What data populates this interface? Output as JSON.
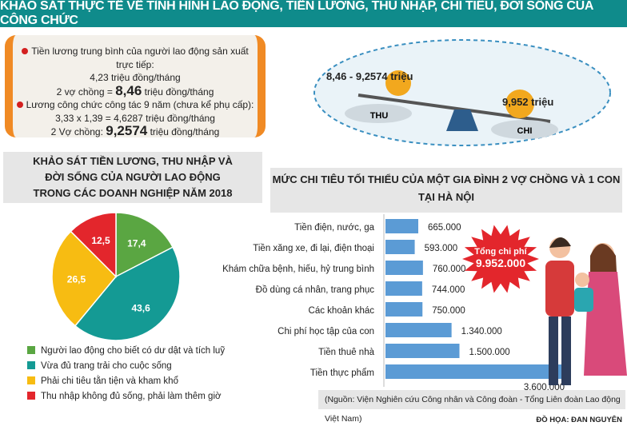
{
  "title": "KHẢO SÁT THỰC TẾ VỀ TÌNH HÌNH LAO ĐỘNG, TIỀN LƯƠNG, THU NHẬP, CHI TIÊU, ĐỜI SỐNG CỦA CÔNG CHỨC",
  "infobox": {
    "line1": "Tiền lương trung bình của người lao động sản xuất trực tiếp:",
    "line2": "4,23 triệu đồng/tháng",
    "line3a": "2 vợ chồng = ",
    "line3b": "8,46",
    "line3c": " triệu đồng/tháng",
    "line4": "Lương công chức công tác 9 năm (chưa kể phụ cấp):",
    "line5": "3,33 x 1,39 = 4,6287 triệu đồng/tháng",
    "line6a": "2 Vợ chồng: ",
    "line6b": "9,2574",
    "line6c": " triệu đồng/tháng"
  },
  "scale": {
    "left_value": "8,46 - 9,2574 triệu",
    "left_label": "THU",
    "right_value": "9,952 triệu",
    "right_label": "CHI"
  },
  "pie_title": [
    "KHẢO SÁT TIỀN LƯƠNG, THU NHẬP VÀ",
    "ĐỜI SỐNG CỦA NGƯỜI LAO ĐỘNG",
    "TRONG CÁC DOANH NGHIỆP NĂM 2018"
  ],
  "bar_title": [
    "MỨC CHI TIÊU TỐI THIỂU CỦA MỘT GIA ĐÌNH 2 VỢ CHỒNG VÀ 1 CON",
    "TẠI HÀ NỘI"
  ],
  "total": {
    "label": "Tổng chi phí",
    "value": "9.952.000"
  },
  "source": "(Nguồn: Viện Nghiên cứu Công nhân và Công đoàn - Tổng Liên đoàn Lao động Việt Nam)",
  "credit": "ĐỒ HỌA: ĐAN NGUYÊN",
  "chart_data": [
    {
      "type": "pie",
      "slices": [
        {
          "label": "Người lao động cho biết có dư dật và tích luỹ",
          "value": 17.4,
          "display": "17,4",
          "color": "#5aa642"
        },
        {
          "label": "Vừa đủ trang trải cho cuộc sống",
          "value": 43.6,
          "display": "43,6",
          "color": "#149a94"
        },
        {
          "label": "Phải chi tiêu tằn tiện và kham khổ",
          "value": 26.5,
          "display": "26,5",
          "color": "#f7bc12"
        },
        {
          "label": "Thu nhập không đủ sống, phải làm thêm giờ",
          "value": 12.5,
          "display": "12,5",
          "color": "#e3262c"
        }
      ]
    },
    {
      "type": "bar",
      "orientation": "horizontal",
      "color": "#5b9bd5",
      "categories": [
        "Tiền điện, nước, ga",
        "Tiền xăng xe, đi lại, điện thoại",
        "Khám chữa bệnh, hiếu, hỷ trung bình",
        "Đồ dùng cá nhân, trang phục",
        "Các khoản khác",
        "Chi phí học tập của con",
        "Tiền thuê nhà",
        "Tiền thực phẩm"
      ],
      "values": [
        665000,
        593000,
        760000,
        744000,
        750000,
        1340000,
        1500000,
        3600000
      ],
      "labels": [
        "665.000",
        "593.000",
        "760.000",
        "744.000",
        "750.000",
        "1.340.000",
        "1.500.000",
        "3.600.000"
      ]
    }
  ]
}
